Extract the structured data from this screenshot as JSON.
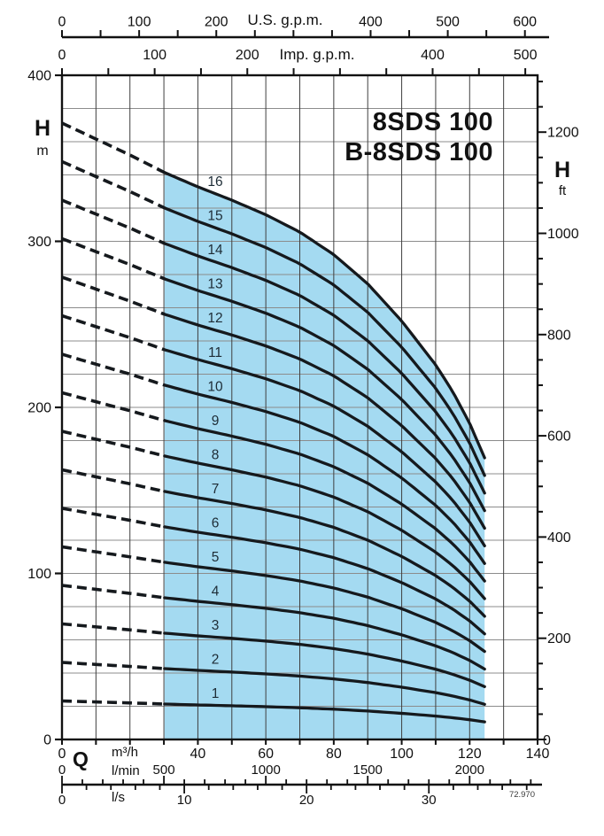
{
  "chart_data": {
    "type": "line",
    "title_lines": [
      "8SDS 100",
      "B-8SDS 100"
    ],
    "figure_number": "72.970",
    "axes": {
      "top_us_gpm": {
        "title": "U.S. g.p.m.",
        "labels": [
          0,
          100,
          200,
          400,
          500,
          600
        ],
        "tick_step": 50,
        "max_tick": 600
      },
      "top_imp_gpm": {
        "title": "Imp. g.p.m.",
        "labels": [
          0,
          100,
          200,
          400,
          500
        ],
        "tick_step": 50,
        "max_tick": 500
      },
      "left_head_m": {
        "title": "H",
        "unit": "m",
        "labels": [
          0,
          100,
          200,
          300,
          400
        ],
        "range": [
          0,
          400
        ],
        "grid_step": 20
      },
      "right_head_ft": {
        "title": "H",
        "unit": "ft",
        "labels": [
          0,
          200,
          400,
          600,
          800,
          1000,
          1200
        ],
        "tick_step": 50,
        "max_tick": 1300,
        "zero_label": "0"
      },
      "bottom_q_m3h": {
        "symbol": "Q",
        "unit": "m³/h",
        "labels": [
          0,
          40,
          60,
          80,
          100,
          120,
          140
        ],
        "range": [
          0,
          140
        ],
        "tick_step": 10
      },
      "bottom_q_lmin": {
        "unit": "l/min",
        "labels": [
          0,
          500,
          1000,
          1500,
          2000
        ],
        "tick_step": 100,
        "max_tick": 2300
      },
      "bottom_q_ls": {
        "unit": "l/s",
        "labels": [
          0,
          10,
          20,
          30
        ],
        "tick_step": 2,
        "max_tick": 38
      }
    },
    "stages": [
      1,
      2,
      3,
      4,
      5,
      6,
      7,
      8,
      9,
      10,
      11,
      12,
      13,
      14,
      15,
      16
    ],
    "per_stage_head_curve": {
      "q_m3h": [
        0,
        10,
        20,
        30,
        40,
        50,
        60,
        70,
        80,
        90,
        100,
        110,
        115,
        120,
        124.4
      ],
      "h_m": [
        23.2,
        22.6,
        22.0,
        21.35,
        20.8,
        20.3,
        19.75,
        19.1,
        18.25,
        17.15,
        15.75,
        14.1,
        13.1,
        11.9,
        10.6
      ]
    },
    "q_solid_range_m3h": [
      30.2,
      124.4
    ],
    "q_dashed_range_m3h": [
      0,
      30.2
    ],
    "operating_region": {
      "q_min_m3h": 30.2,
      "q_max_m3h": 124.4,
      "h_min_m": 0,
      "top_stage": 16
    },
    "colors": {
      "region": "#a4daf1",
      "curve": "#15191d",
      "grid_vertical": "#3f3f3f",
      "grid_horizontal": "#8c8c8c",
      "axis": "#111111",
      "stage_label": "#1d2c36"
    }
  }
}
